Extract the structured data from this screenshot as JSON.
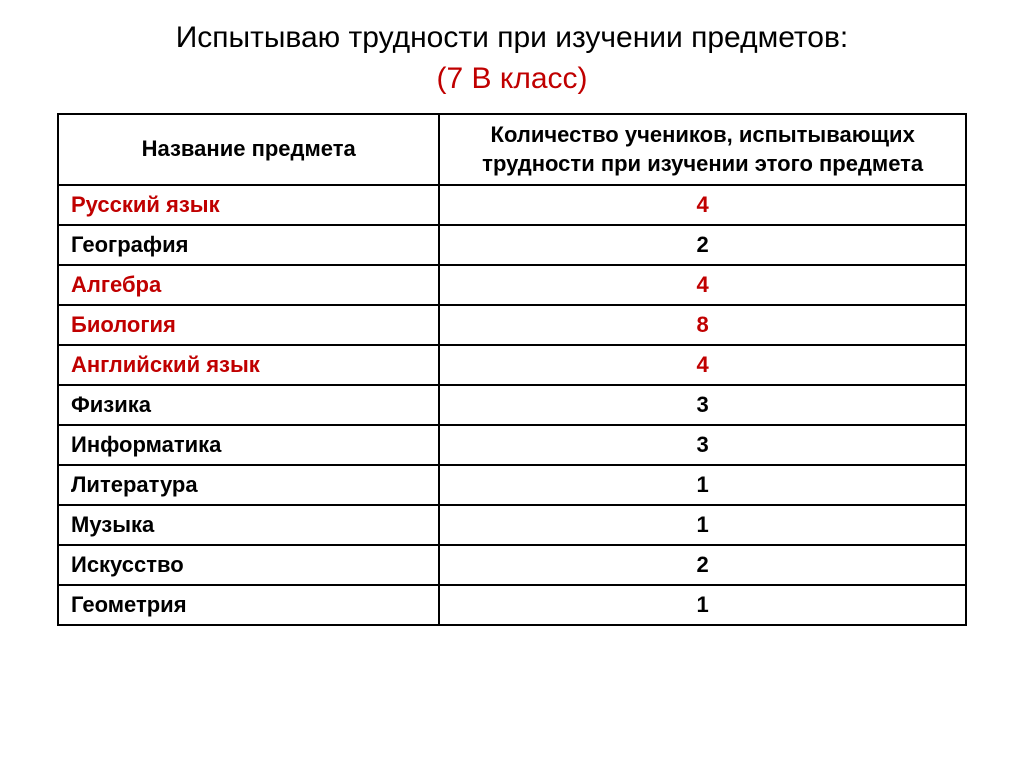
{
  "title": {
    "main": "Испытываю трудности при изучении предметов:",
    "sub": "(7 В класс)",
    "main_color": "#000000",
    "sub_color": "#c00000",
    "fontsize": 30
  },
  "table": {
    "type": "table",
    "border_color": "#000000",
    "border_width": 2,
    "background_color": "#ffffff",
    "header_fontsize": 22,
    "cell_fontsize": 22,
    "font_weight": "bold",
    "columns": [
      {
        "label": "Название предмета",
        "width_pct": 42,
        "align": "left"
      },
      {
        "label": "Количество учеников, испытывающих трудности при изучении этого предмета",
        "width_pct": 58,
        "align": "center"
      }
    ],
    "highlight_color": "#c00000",
    "normal_color": "#000000",
    "rows": [
      {
        "subject": "Русский язык",
        "count": "4",
        "highlighted": true
      },
      {
        "subject": "География",
        "count": "2",
        "highlighted": false
      },
      {
        "subject": "Алгебра",
        "count": "4",
        "highlighted": true
      },
      {
        "subject": "Биология",
        "count": "8",
        "highlighted": true
      },
      {
        "subject": "Английский язык",
        "count": "4",
        "highlighted": true
      },
      {
        "subject": "Физика",
        "count": "3",
        "highlighted": false
      },
      {
        "subject": "Информатика",
        "count": "3",
        "highlighted": false
      },
      {
        "subject": "Литература",
        "count": "1",
        "highlighted": false
      },
      {
        "subject": "Музыка",
        "count": "1",
        "highlighted": false
      },
      {
        "subject": "Искусство",
        "count": "2",
        "highlighted": false
      },
      {
        "subject": "Геометрия",
        "count": "1",
        "highlighted": false
      }
    ]
  }
}
